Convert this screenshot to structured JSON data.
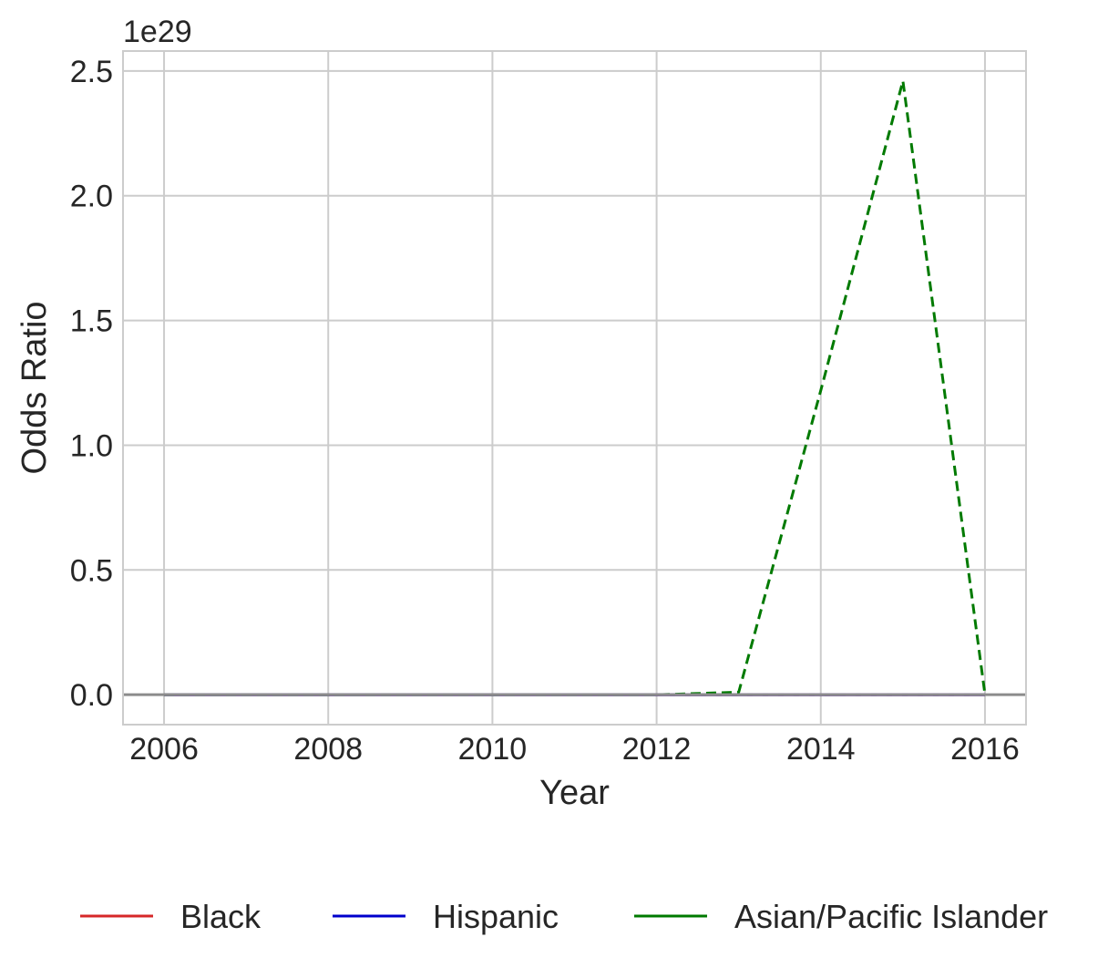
{
  "chart_data": {
    "type": "line",
    "title": "",
    "xlabel": "Year",
    "ylabel": "Odds Ratio",
    "y_offset_text": "1e29",
    "xlim": [
      2005.5,
      2016.5
    ],
    "ylim": [
      -0.12,
      2.58
    ],
    "x_ticks": [
      2006,
      2008,
      2010,
      2012,
      2014,
      2016
    ],
    "x_tick_labels": [
      "2006",
      "2008",
      "2010",
      "2012",
      "2014",
      "2016"
    ],
    "y_ticks": [
      0.0,
      0.5,
      1.0,
      1.5,
      2.0,
      2.5
    ],
    "y_tick_labels": [
      "0.0",
      "0.5",
      "1.0",
      "1.5",
      "2.0",
      "2.5"
    ],
    "grid": true,
    "legend_position": "bottom",
    "x": [
      2006,
      2007,
      2008,
      2009,
      2010,
      2011,
      2012,
      2013,
      2014,
      2015,
      2016
    ],
    "series": [
      {
        "name": "Black",
        "color": "#d62728",
        "dash": "solid",
        "values": [
          0,
          0,
          0,
          0,
          0,
          0,
          0,
          0,
          0,
          0,
          0
        ]
      },
      {
        "name": "Hispanic",
        "color": "#0000cc",
        "dash": "solid",
        "values": [
          0,
          0,
          0,
          0,
          0,
          0,
          0,
          0,
          0,
          0,
          0
        ]
      },
      {
        "name": "Asian/Pacific Islander",
        "color": "#007a00",
        "dash": "dashed",
        "values": [
          0,
          0,
          0,
          0,
          0,
          0,
          0,
          0.01,
          1.22,
          2.46,
          0
        ]
      },
      {
        "name": "",
        "color": "#8c6dbf",
        "dash": "dashed",
        "values": [
          0,
          0,
          0,
          0,
          0,
          0,
          0,
          0,
          0,
          0,
          0
        ]
      }
    ],
    "reference_line": {
      "y": 0,
      "color": "#8c8c8c"
    }
  },
  "legend": {
    "items": [
      {
        "label": "Black",
        "color": "#d62728"
      },
      {
        "label": "Hispanic",
        "color": "#0000cc"
      },
      {
        "label": "Asian/Pacific Islander",
        "color": "#007a00"
      }
    ]
  }
}
